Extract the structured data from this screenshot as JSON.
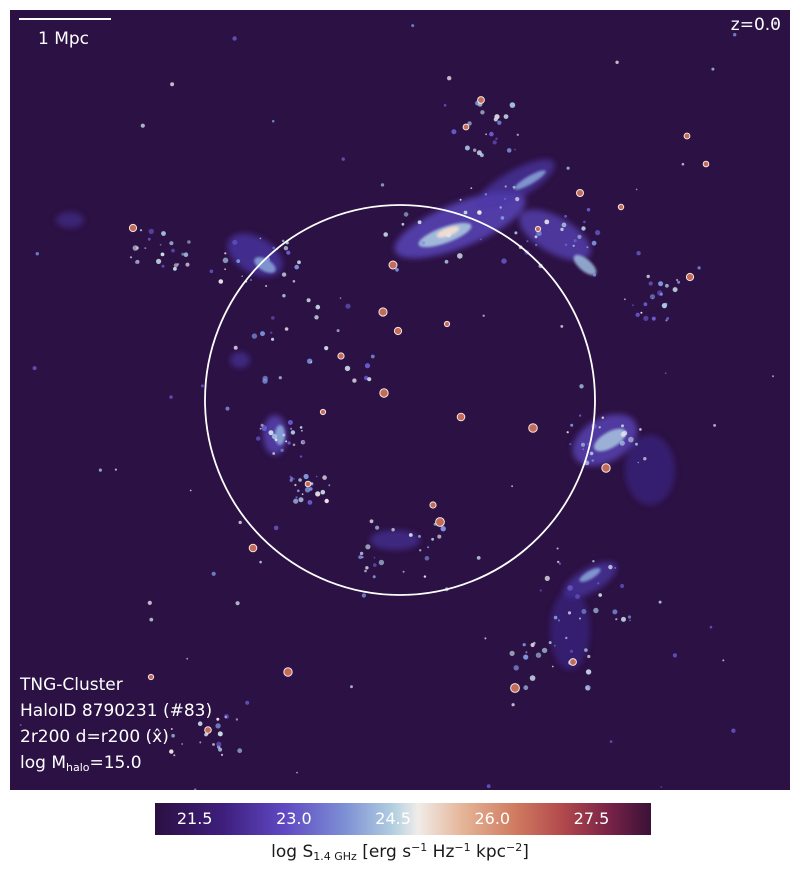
{
  "scale_bar": {
    "label": "1 Mpc"
  },
  "redshift": "z=0.0",
  "info": {
    "simulation": "TNG-Cluster",
    "halo": "HaloID 8790231 (#83)",
    "projection": "2r200 d=r200 (x̂)",
    "mass_prefix": "log M",
    "mass_sub": "halo",
    "mass_value": "=15.0"
  },
  "colorbar": {
    "ticks": [
      "21.5",
      "23.0",
      "24.5",
      "26.0",
      "27.5"
    ],
    "range": [
      20.9,
      28.4
    ],
    "label_prefix": "log S",
    "label_sub": "1.4 GHz",
    "label_units": " [erg s",
    "label_sup1": "−1",
    "label_mid": " Hz",
    "label_sup2": "−1",
    "label_mid2": " kpc",
    "label_sup3": "−2",
    "label_end": "]"
  },
  "colors": {
    "background": "#2c1144",
    "circle": "#ffffff"
  }
}
